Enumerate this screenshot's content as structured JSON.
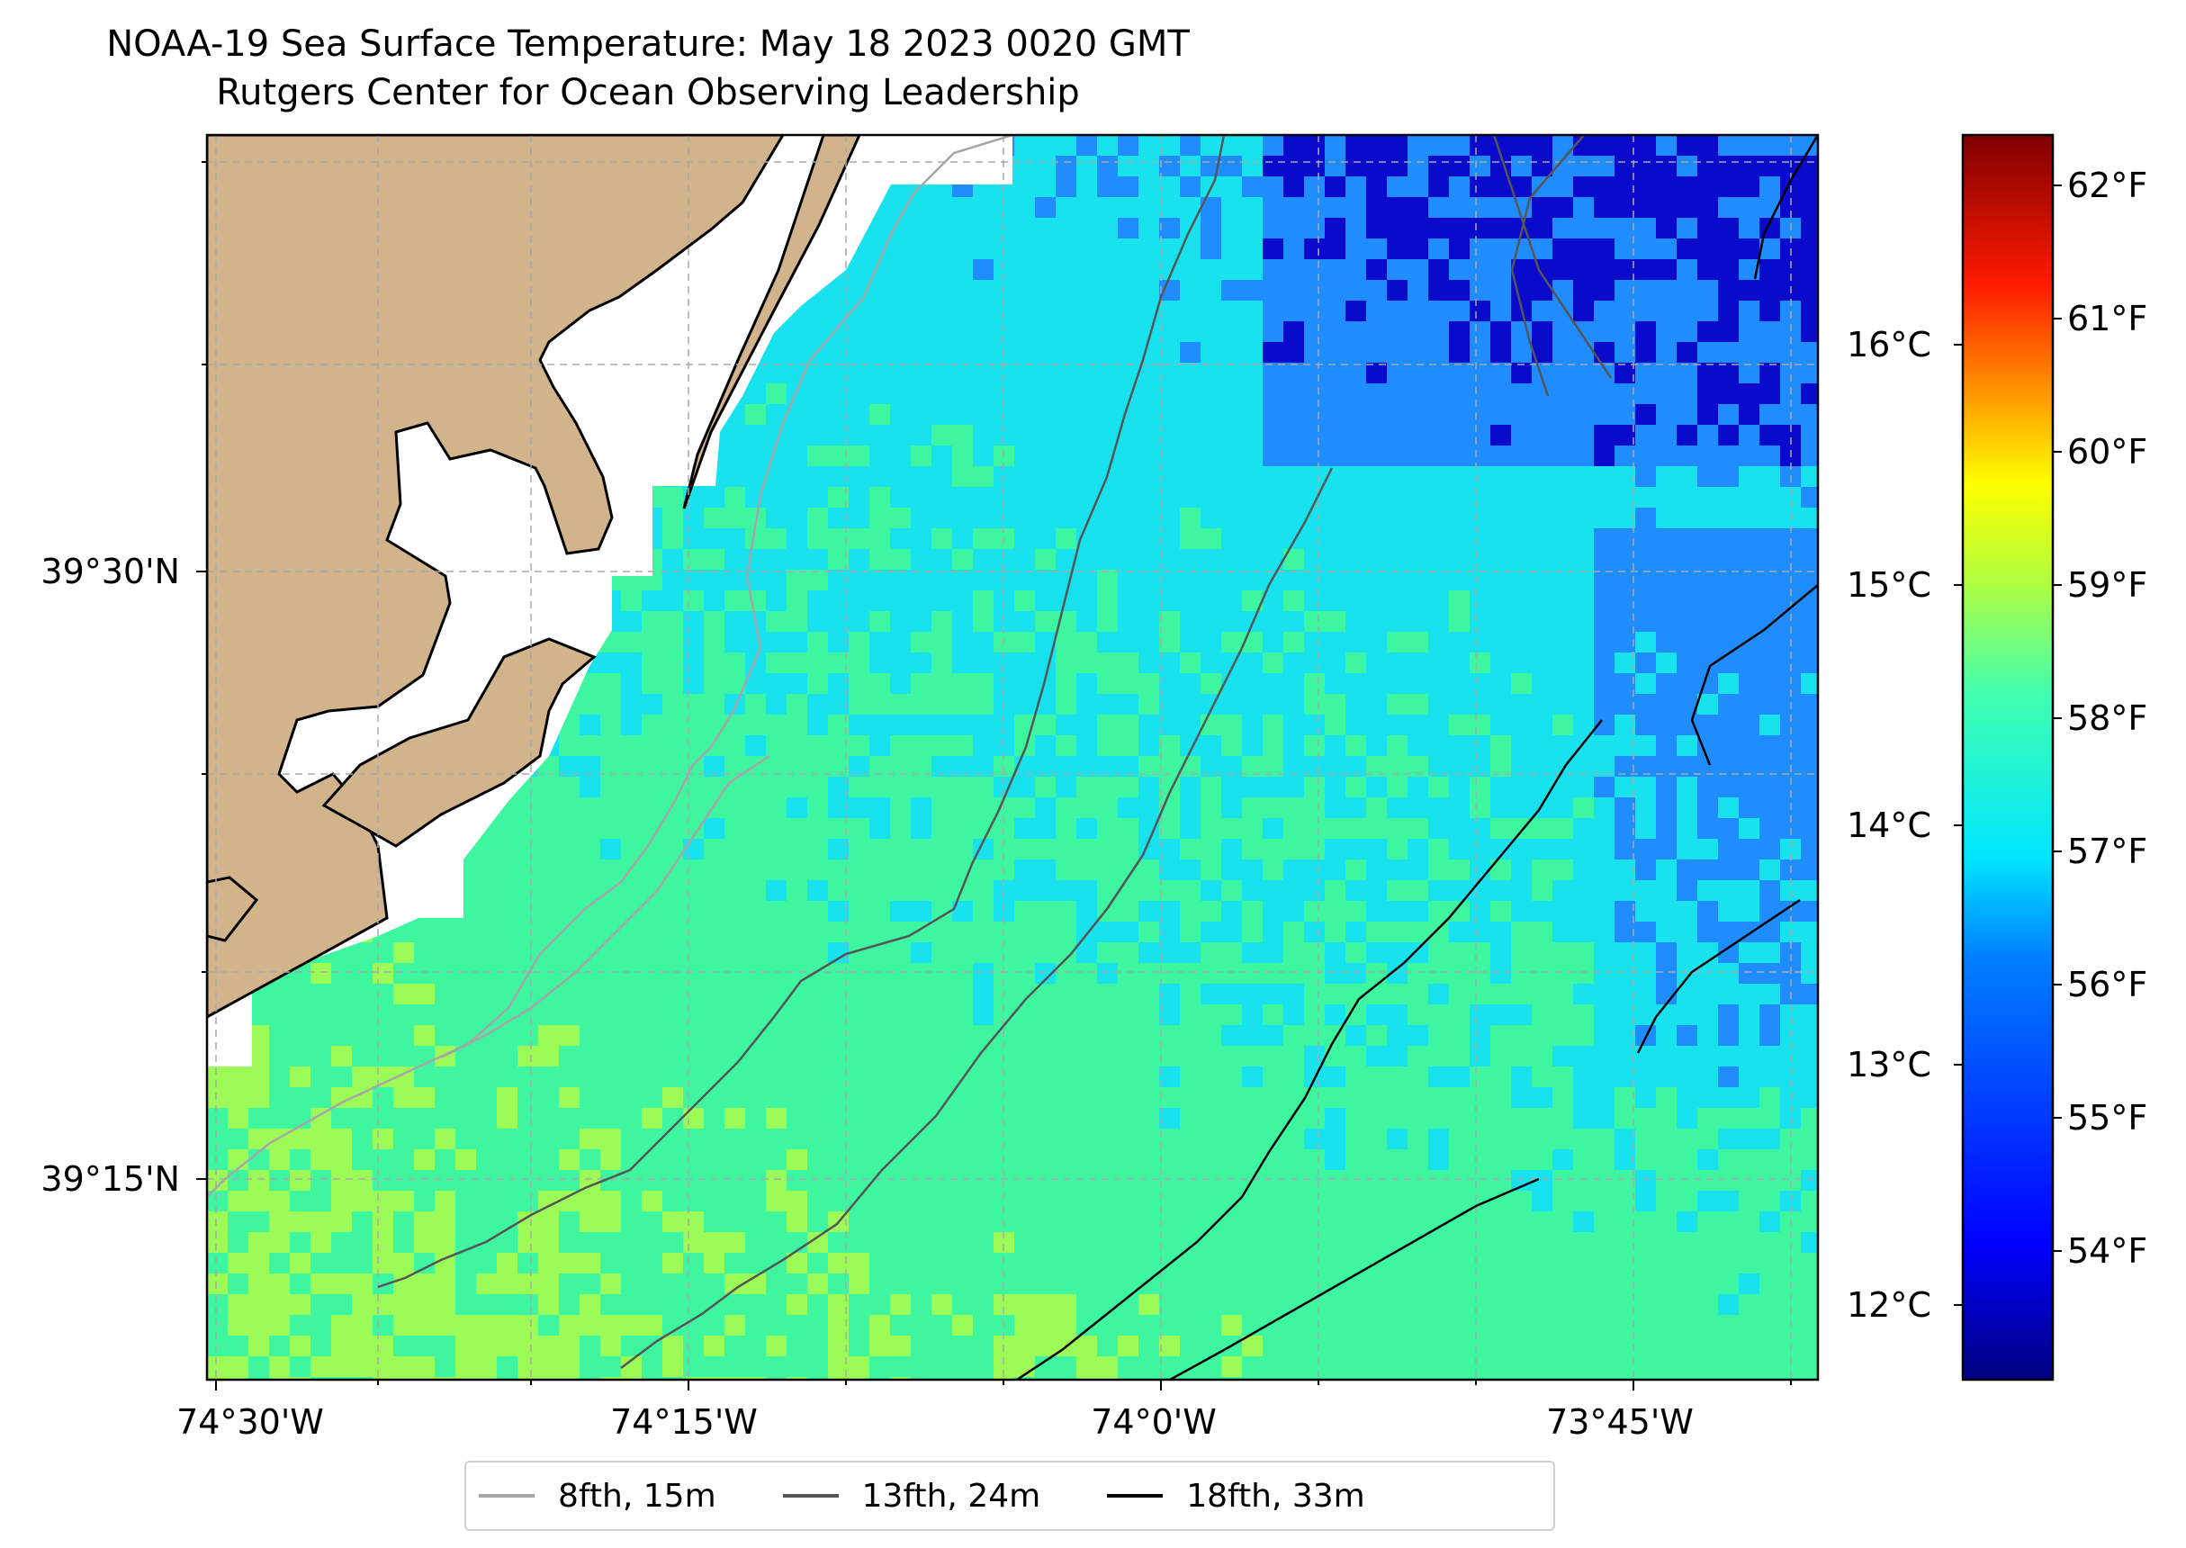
{
  "title": {
    "line1": "NOAA-19 Sea Surface Temperature: May 18 2023 0020 GMT",
    "line2": "Rutgers Center for Ocean Observing Leadership"
  },
  "axes": {
    "x_ticks": [
      "74°30'W",
      "74°15'W",
      "74°0'W",
      "73°45'W"
    ],
    "y_ticks": [
      "39°30'N",
      "39°15'N"
    ],
    "celsius_ticks": [
      "16°C",
      "15°C",
      "14°C",
      "13°C",
      "12°C"
    ],
    "fahrenheit_ticks": [
      "62°F",
      "61°F",
      "60°F",
      "59°F",
      "58°F",
      "57°F",
      "56°F",
      "55°F",
      "54°F"
    ]
  },
  "legend": [
    {
      "label": "8fth, 15m",
      "color": "#a6a6a6"
    },
    {
      "label": "13fth, 24m",
      "color": "#555555"
    },
    {
      "label": "18fth, 33m",
      "color": "#000000"
    }
  ],
  "colors": {
    "land": "#d2b48c",
    "cold": "#0a0acc",
    "cool": "#1f8cff",
    "mid": "#17e2ee",
    "warm": "#3ef5a0",
    "warmer": "#9dfb58"
  },
  "chart_data": {
    "type": "heatmap",
    "title": "NOAA-19 Sea Surface Temperature: May 18 2023 0020 GMT",
    "subtitle": "Rutgers Center for Ocean Observing Leadership",
    "x_range": [
      "74°31'W",
      "73°41'W"
    ],
    "y_range": [
      "39°10'N",
      "39°41'N"
    ],
    "colorbar_f_range": [
      53.2,
      62.4
    ],
    "colorbar_c_range": [
      11.8,
      16.9
    ],
    "grid": true,
    "legend_placement": "bottom-center",
    "contours": [
      "8fth, 15m",
      "13fth, 24m",
      "18fth, 33m"
    ]
  }
}
